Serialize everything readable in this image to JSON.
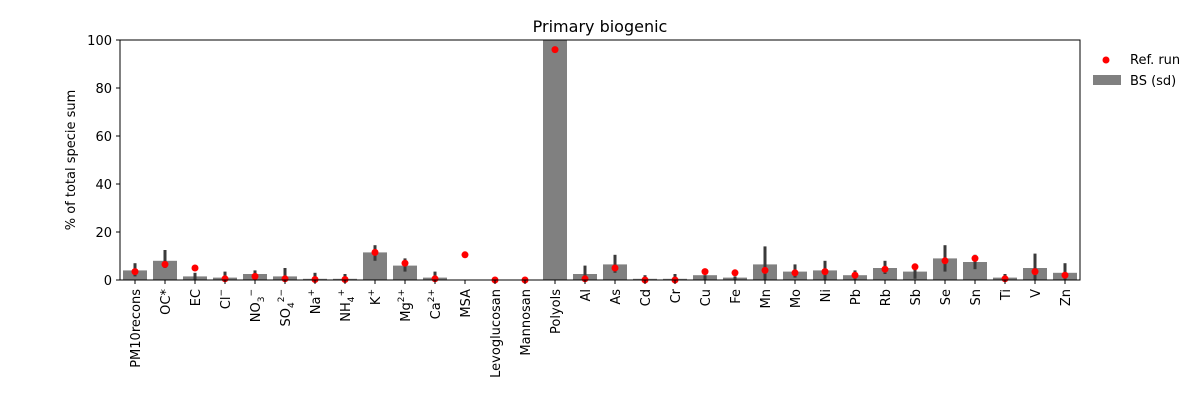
{
  "chart_data": {
    "type": "bar",
    "title": "Primary biogenic",
    "xlabel": "",
    "ylabel": "% of total specie sum",
    "ylim": [
      0,
      100
    ],
    "yticks": [
      0,
      20,
      40,
      60,
      80,
      100
    ],
    "grid": false,
    "legend_position": "top-right outside",
    "categories": [
      {
        "base": "PM10recons"
      },
      {
        "base": "OC*"
      },
      {
        "base": "EC"
      },
      {
        "base": "Cl",
        "sup": "−"
      },
      {
        "base": "NO",
        "sub": "3",
        "sup": "−"
      },
      {
        "base": "SO",
        "sub": "4",
        "sup": "2−"
      },
      {
        "base": "Na",
        "sup": "+"
      },
      {
        "base": "NH",
        "sub": "4",
        "sup": "+"
      },
      {
        "base": "K",
        "sup": "+"
      },
      {
        "base": "Mg",
        "sup": "2+"
      },
      {
        "base": "Ca",
        "sup": "2+"
      },
      {
        "base": "MSA"
      },
      {
        "base": "Levoglucosan"
      },
      {
        "base": "Mannosan"
      },
      {
        "base": "Polyols"
      },
      {
        "base": "Al"
      },
      {
        "base": "As"
      },
      {
        "base": "Cd"
      },
      {
        "base": "Cr"
      },
      {
        "base": "Cu"
      },
      {
        "base": "Fe"
      },
      {
        "base": "Mn"
      },
      {
        "base": "Mo"
      },
      {
        "base": "Ni"
      },
      {
        "base": "Pb"
      },
      {
        "base": "Rb"
      },
      {
        "base": "Sb"
      },
      {
        "base": "Se"
      },
      {
        "base": "Sn"
      },
      {
        "base": "Ti"
      },
      {
        "base": "V"
      },
      {
        "base": "Zn"
      }
    ],
    "series": [
      {
        "name": "BS (sd)",
        "kind": "bar",
        "color": "#808080",
        "values": [
          4,
          8,
          1.5,
          1,
          2.5,
          1.5,
          0.5,
          0.5,
          11.5,
          6,
          1,
          0,
          0,
          0,
          100,
          2.5,
          6.5,
          0.5,
          0.5,
          2,
          1,
          6.5,
          3.5,
          4,
          2,
          5,
          3.5,
          9,
          7.5,
          1,
          5,
          3
        ],
        "error_low": [
          1.5,
          5,
          0,
          0,
          1.5,
          0,
          0,
          0,
          8,
          3.5,
          0,
          0,
          0,
          0,
          100,
          0,
          3,
          0,
          0,
          0,
          0,
          0,
          1,
          0,
          0,
          2.5,
          0.5,
          3.5,
          4.5,
          0,
          0,
          0
        ],
        "error_high": [
          7,
          12.5,
          3,
          3.5,
          4,
          5,
          3,
          2.5,
          14.5,
          9,
          3.5,
          0,
          0,
          0,
          100,
          6,
          10.5,
          2,
          2.5,
          2,
          1.5,
          14,
          6.5,
          8,
          4,
          8,
          6,
          14.5,
          10.5,
          2.5,
          11,
          7
        ],
        "error_color": "#3a3a3a"
      },
      {
        "name": "Ref. run",
        "kind": "point",
        "color": "#ff0000",
        "values": [
          3.5,
          6.5,
          5,
          0.5,
          1.5,
          0.5,
          0.2,
          0.2,
          11.5,
          7,
          0.5,
          10.5,
          0,
          0,
          96,
          0.5,
          5,
          0,
          0,
          3.5,
          3,
          4,
          3,
          3.5,
          2,
          4.5,
          5.5,
          8,
          9,
          0.5,
          3.5,
          2
        ]
      }
    ],
    "legend": [
      "Ref. run",
      "BS (sd)"
    ]
  }
}
